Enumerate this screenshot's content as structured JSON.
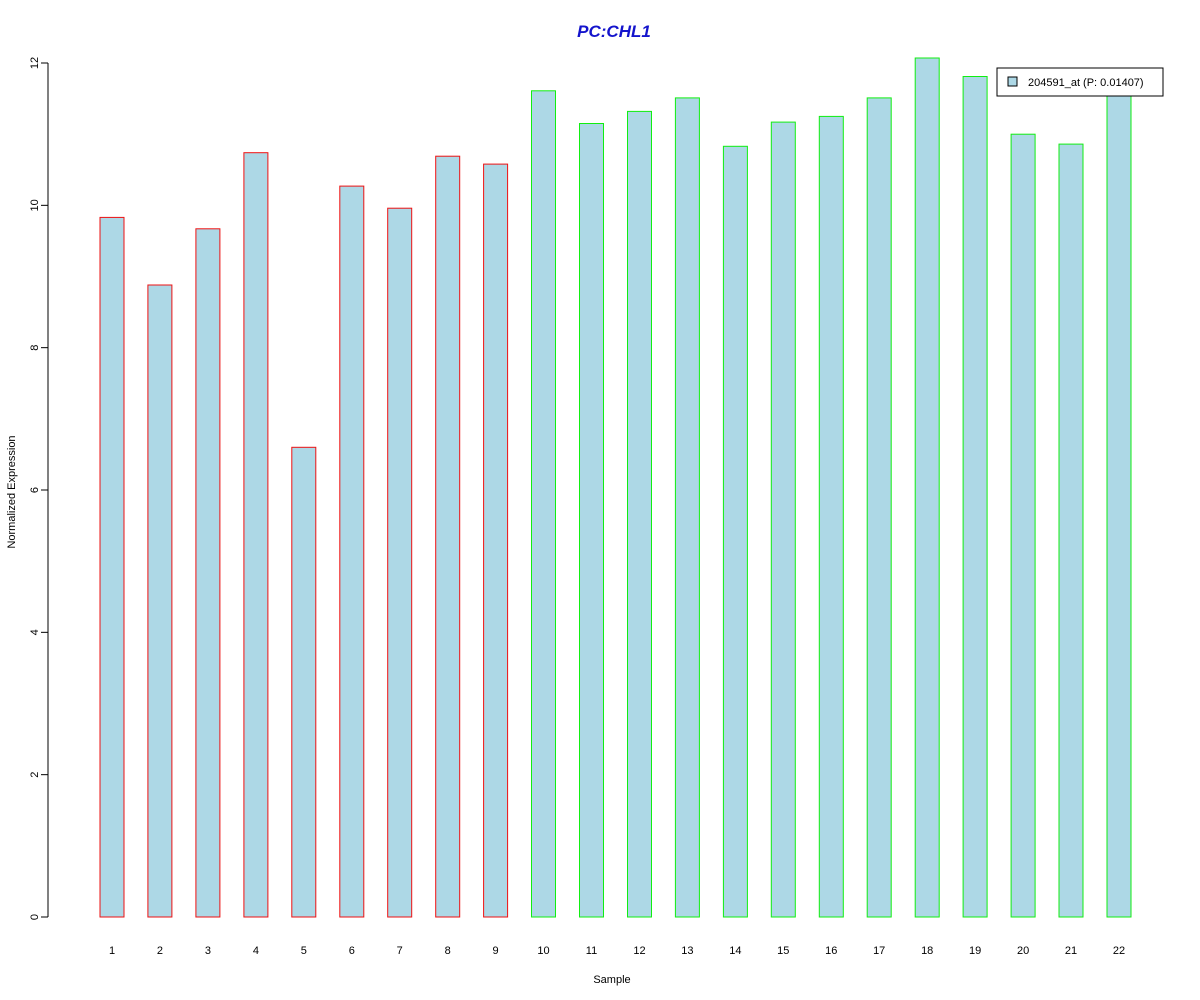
{
  "chart_data": {
    "type": "bar",
    "title": "PC:CHL1",
    "xlabel": "Sample",
    "ylabel": "Normalized Expression",
    "categories": [
      "1",
      "2",
      "3",
      "4",
      "5",
      "6",
      "7",
      "8",
      "9",
      "10",
      "11",
      "12",
      "13",
      "14",
      "15",
      "16",
      "17",
      "18",
      "19",
      "20",
      "21",
      "22"
    ],
    "series": [
      {
        "name": "204591_at (P: 0.01407)",
        "values": [
          9.83,
          8.88,
          9.67,
          10.74,
          6.6,
          10.27,
          9.96,
          10.69,
          10.58,
          11.61,
          11.15,
          11.32,
          11.51,
          10.83,
          11.17,
          11.25,
          11.51,
          12.07,
          11.81,
          11.0,
          10.86,
          11.62
        ]
      }
    ],
    "groups": [
      {
        "samples": [
          "1",
          "2",
          "3",
          "4",
          "5",
          "6",
          "7",
          "8",
          "9"
        ],
        "border_color": "#ee1111"
      },
      {
        "samples": [
          "10",
          "11",
          "12",
          "13",
          "14",
          "15",
          "16",
          "17",
          "18",
          "19",
          "20",
          "21",
          "22"
        ],
        "border_color": "#11ee11"
      }
    ],
    "ylim": [
      0,
      12
    ],
    "yticks": [
      0,
      2,
      4,
      6,
      8,
      10,
      12
    ],
    "bar_fill": "#add8e6",
    "title_color": "#1414cc",
    "grid": false,
    "legend_position": "top-right"
  }
}
